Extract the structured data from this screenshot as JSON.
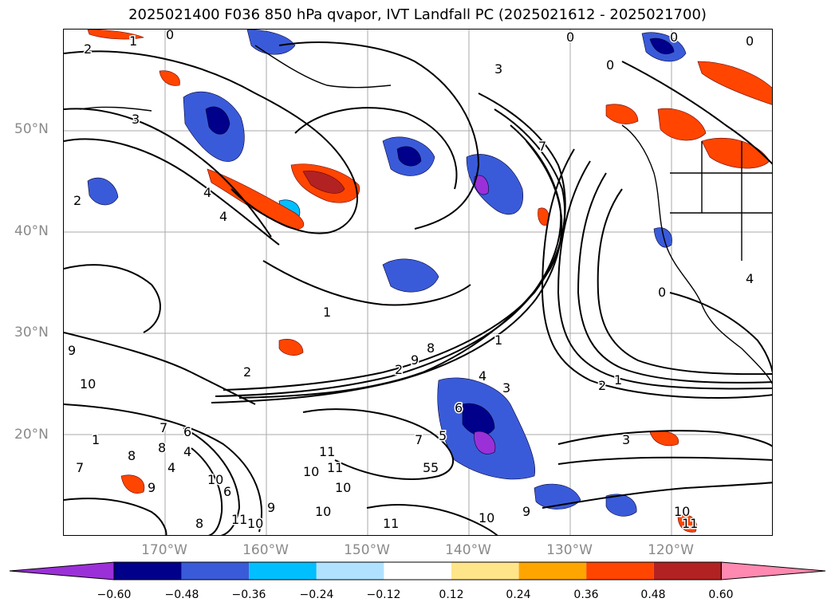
{
  "title": "2025021400 F036 850 hPa qvapor, IVT Landfall PC (2025021612 - 2025021700)",
  "lat_axis": [
    "50°N",
    "40°N",
    "30°N",
    "20°N"
  ],
  "lon_axis": [
    "170°W",
    "160°W",
    "150°W",
    "140°W",
    "130°W",
    "120°W"
  ],
  "colorbar": {
    "ticks": [
      "−0.60",
      "−0.48",
      "−0.36",
      "−0.24",
      "−0.12",
      "0.12",
      "0.24",
      "0.36",
      "0.48",
      "0.60"
    ],
    "colors": [
      "#9b30d8",
      "#00008b",
      "#3a5bd9",
      "#00bfff",
      "#b0e2ff",
      "#ffffff",
      "#ffe58a",
      "#ffa500",
      "#ff4500",
      "#b22222",
      "#ff89b0"
    ]
  },
  "contour_labels": [
    "2",
    "1",
    "0",
    "0",
    "0",
    "0",
    "0",
    "3",
    "3",
    "7",
    "2",
    "4",
    "4",
    "1",
    "2",
    "9",
    "10",
    "2",
    "1",
    "9",
    "8",
    "7",
    "5",
    "6",
    "4",
    "3",
    "2",
    "1",
    "4",
    "1",
    "3",
    "8",
    "5",
    "10",
    "7",
    "9",
    "11",
    "11",
    "10",
    "10",
    "10",
    "9",
    "11",
    "11",
    "10",
    "10",
    "9",
    "11",
    "5",
    "7",
    "8",
    "6",
    "10",
    "6",
    "8",
    "0",
    "4",
    "4"
  ]
}
